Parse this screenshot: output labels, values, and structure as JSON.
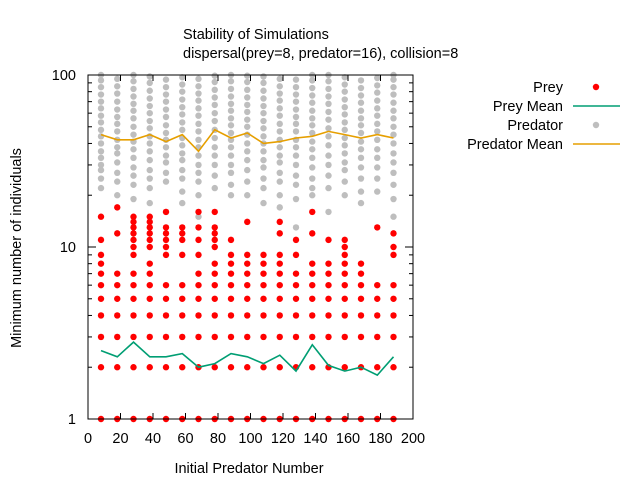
{
  "chart_data": {
    "type": "scatter",
    "title": "Stability of Simulations",
    "subtitle": "dispersal(prey=8, predator=16), collision=8",
    "xlabel": "Initial Predator Number",
    "ylabel": "Minimum number of individuals",
    "xlim": [
      0,
      200
    ],
    "ylim": [
      1,
      100
    ],
    "yscale": "log",
    "grid": false,
    "legend_position": "top-right outside",
    "x_ticks": [
      "0",
      "20",
      "40",
      "60",
      "80",
      "100",
      "120",
      "140",
      "160",
      "180",
      "200"
    ],
    "y_ticks": [
      "1",
      "10",
      "100"
    ],
    "x": [
      8,
      18,
      28,
      38,
      48,
      58,
      68,
      78,
      88,
      98,
      108,
      118,
      128,
      138,
      148,
      158,
      168,
      178,
      188
    ],
    "series": [
      {
        "name": "Prey",
        "kind": "points",
        "color": "#ff0000",
        "values_by_x": [
          [
            1,
            2,
            3,
            4,
            5,
            6,
            7,
            8,
            9,
            11,
            15
          ],
          [
            1,
            2,
            3,
            4,
            5,
            6,
            7,
            12,
            17
          ],
          [
            1,
            2,
            3,
            4,
            5,
            6,
            7,
            9,
            10,
            11,
            12,
            13,
            14,
            15
          ],
          [
            1,
            2,
            3,
            4,
            5,
            6,
            7,
            8,
            10,
            11,
            12,
            13,
            14,
            15
          ],
          [
            1,
            2,
            3,
            4,
            5,
            6,
            9,
            10,
            11,
            12,
            13,
            16
          ],
          [
            1,
            2,
            3,
            4,
            5,
            6,
            9,
            11,
            12,
            13
          ],
          [
            1,
            2,
            3,
            4,
            5,
            6,
            7,
            9,
            11,
            13,
            16
          ],
          [
            1,
            2,
            3,
            4,
            5,
            6,
            7,
            8,
            10,
            11,
            12,
            13,
            16
          ],
          [
            1,
            2,
            3,
            4,
            5,
            6,
            7,
            8,
            9,
            11
          ],
          [
            1,
            2,
            3,
            4,
            5,
            6,
            7,
            8,
            9,
            14
          ],
          [
            1,
            2,
            3,
            4,
            5,
            6,
            7,
            8,
            9
          ],
          [
            1,
            2,
            3,
            4,
            5,
            6,
            7,
            8,
            9,
            12,
            14
          ],
          [
            1,
            2,
            3,
            4,
            5,
            6,
            7,
            9,
            11
          ],
          [
            1,
            2,
            3,
            4,
            5,
            6,
            7,
            8,
            12,
            16
          ],
          [
            1,
            2,
            3,
            4,
            5,
            6,
            7,
            8,
            11
          ],
          [
            1,
            2,
            3,
            4,
            5,
            6,
            7,
            8,
            9,
            10,
            11
          ],
          [
            1,
            2,
            3,
            4,
            5,
            6,
            7,
            8
          ],
          [
            1,
            2,
            3,
            4,
            5,
            6,
            13
          ],
          [
            1,
            2,
            3,
            4,
            5,
            6,
            9,
            10,
            12
          ]
        ]
      },
      {
        "name": "Prey Mean",
        "kind": "line",
        "color": "#009e73",
        "values": [
          2.5,
          2.3,
          2.8,
          2.3,
          2.3,
          2.4,
          2.0,
          2.1,
          2.4,
          2.3,
          2.1,
          2.35,
          1.9,
          2.7,
          2.05,
          1.9,
          2.0,
          1.8,
          2.3
        ]
      },
      {
        "name": "Predator",
        "kind": "points",
        "color": "#bebebe",
        "values_by_x": [
          [
            22,
            25,
            28,
            30,
            33,
            36,
            40,
            44,
            48,
            53,
            58,
            64,
            70,
            77,
            85,
            93,
            100
          ],
          [
            20,
            24,
            27,
            31,
            35,
            38,
            42,
            47,
            52,
            57,
            63,
            70,
            78,
            86,
            95
          ],
          [
            19,
            23,
            26,
            29,
            33,
            37,
            41,
            45,
            50,
            56,
            62,
            68,
            75,
            83,
            92,
            100
          ],
          [
            18,
            22,
            25,
            28,
            32,
            36,
            40,
            44,
            49,
            54,
            60,
            66,
            73,
            81,
            90,
            98
          ],
          [
            16,
            24,
            27,
            31,
            34,
            38,
            42,
            46,
            51,
            57,
            63,
            70,
            77,
            85,
            94
          ],
          [
            18,
            21,
            25,
            28,
            32,
            35,
            39,
            43,
            48,
            53,
            59,
            65,
            72,
            80,
            88,
            97
          ],
          [
            15,
            20,
            24,
            27,
            30,
            34,
            38,
            42,
            47,
            52,
            58,
            64,
            71,
            78,
            86,
            95
          ],
          [
            22,
            26,
            30,
            34,
            38,
            43,
            48,
            54,
            60,
            67,
            74,
            82,
            91,
            99
          ],
          [
            20,
            23,
            27,
            30,
            34,
            38,
            42,
            46,
            51,
            56,
            62,
            68,
            75,
            83,
            92,
            100
          ],
          [
            20,
            24,
            28,
            32,
            36,
            40,
            45,
            50,
            55,
            61,
            67,
            74,
            82,
            91,
            99
          ],
          [
            18,
            22,
            25,
            29,
            32,
            36,
            40,
            44,
            49,
            54,
            60,
            66,
            73,
            81,
            90,
            98
          ],
          [
            17,
            20,
            24,
            27,
            31,
            34,
            38,
            42,
            47,
            52,
            58,
            64,
            71,
            78,
            86,
            95
          ],
          [
            13,
            19,
            23,
            26,
            30,
            34,
            38,
            42,
            47,
            52,
            57,
            63,
            70,
            77,
            85,
            94
          ],
          [
            20,
            22,
            25,
            29,
            33,
            37,
            41,
            46,
            51,
            56,
            62,
            69,
            76,
            84,
            93,
            100
          ],
          [
            16,
            22,
            26,
            30,
            34,
            39,
            44,
            49,
            55,
            61,
            68,
            75,
            83,
            92,
            100
          ],
          [
            20,
            24,
            28,
            31,
            35,
            39,
            43,
            48,
            53,
            59,
            65,
            72,
            80,
            88,
            97
          ],
          [
            18,
            21,
            25,
            29,
            33,
            37,
            41,
            46,
            51,
            56,
            62,
            69,
            76,
            84,
            93
          ],
          [
            21,
            25,
            29,
            33,
            37,
            42,
            47,
            52,
            58,
            64,
            71,
            79,
            87,
            96
          ],
          [
            15,
            19,
            23,
            27,
            31,
            35,
            40,
            45,
            50,
            56,
            62,
            69,
            77,
            85,
            94,
            100
          ]
        ]
      },
      {
        "name": "Predator Mean",
        "kind": "line",
        "color": "#e69f00",
        "values": [
          45,
          42,
          42,
          45,
          41,
          45,
          36,
          48,
          43,
          46,
          40,
          41,
          43,
          44,
          47,
          45,
          43,
          45,
          43
        ]
      }
    ]
  }
}
